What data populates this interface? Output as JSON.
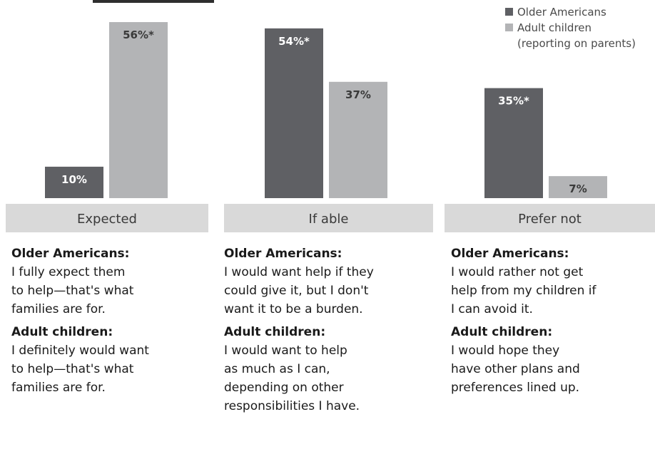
{
  "colors": {
    "older": "#5f6064",
    "adult": "#b3b4b6",
    "band": "#d9d9d9",
    "band_text": "#3a3a3a"
  },
  "legend": {
    "older_label": "Older Americans",
    "adult_label": "Adult children\n(reporting on parents)"
  },
  "chart_data": {
    "type": "bar",
    "categories": [
      "Expected",
      "If able",
      "Prefer not"
    ],
    "series": [
      {
        "name": "Older Americans",
        "values": [
          10,
          54,
          35
        ],
        "labels": [
          "10%",
          "54%*",
          "35%*"
        ]
      },
      {
        "name": "Adult children (reporting on parents)",
        "values": [
          56,
          37,
          7
        ],
        "labels": [
          "56%*",
          "37%",
          "7%"
        ]
      }
    ],
    "ylim": [
      0,
      56
    ],
    "grid": false,
    "legend_position": "top-right"
  },
  "panels": [
    {
      "older_heading": "Older Americans:",
      "older_text": "I fully expect them\nto help—that's what\nfamilies are for.",
      "adult_heading": "Adult children:",
      "adult_text": "I definitely would want\nto help—that's what\nfamilies are for."
    },
    {
      "older_heading": "Older Americans:",
      "older_text": "I would want help if they\ncould give it, but I don't\nwant it to be a burden.",
      "adult_heading": "Adult children:",
      "adult_text": "I would want to help\nas much as I can,\ndepending on other\nresponsibilities I have."
    },
    {
      "older_heading": "Older Americans:",
      "older_text": "I would rather not get\nhelp from my children if\nI can avoid it.",
      "adult_heading": "Adult children:",
      "adult_text": "I would hope they\nhave other plans and\npreferences lined up."
    }
  ]
}
